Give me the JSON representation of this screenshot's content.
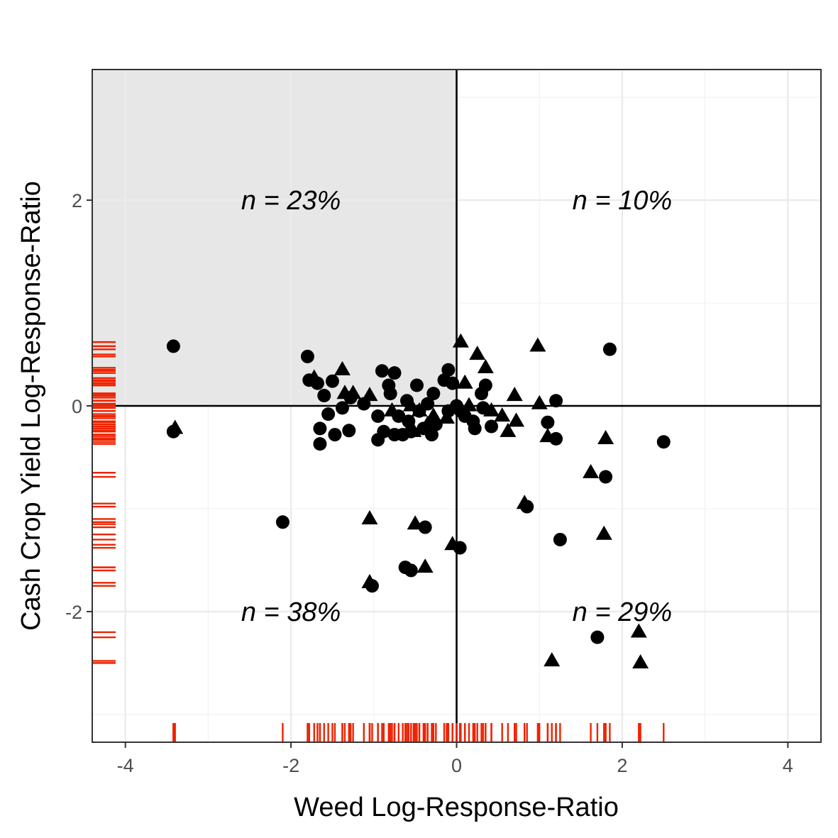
{
  "chart_data": {
    "type": "scatter",
    "title": "",
    "xlabel": "Weed Log-Response-Ratio",
    "ylabel": "Cash Crop Yield Log-Response-Ratio",
    "xlim": [
      -4.4,
      4.4
    ],
    "ylim": [
      -3.27,
      3.27
    ],
    "x_ticks": [
      -4,
      -2,
      0,
      2,
      4
    ],
    "y_ticks": [
      -2,
      0,
      2
    ],
    "grid": true,
    "shaded_quadrant": "top-left",
    "shade_color": "#e7e7e7",
    "rug_color": "#ee2200",
    "point_color": "#000000",
    "quadrant_annotations": [
      {
        "label": "n = 23%",
        "x": -2.0,
        "y": 2.0
      },
      {
        "label": "n = 10%",
        "x": 2.0,
        "y": 2.0
      },
      {
        "label": "n = 38%",
        "x": -2.0,
        "y": -2.0
      },
      {
        "label": "n = 29%",
        "x": 2.0,
        "y": -2.0
      }
    ],
    "series": [
      {
        "marker": "circle",
        "points": [
          [
            -3.42,
            0.58
          ],
          [
            -3.42,
            -0.25
          ],
          [
            -1.8,
            0.48
          ],
          [
            -1.78,
            0.25
          ],
          [
            -1.68,
            0.22
          ],
          [
            -1.6,
            0.1
          ],
          [
            -1.55,
            -0.08
          ],
          [
            -1.5,
            0.24
          ],
          [
            -1.65,
            -0.22
          ],
          [
            -1.65,
            -0.37
          ],
          [
            -1.47,
            -0.28
          ],
          [
            -1.38,
            -0.02
          ],
          [
            -1.3,
            -0.24
          ],
          [
            -1.28,
            0.08
          ],
          [
            -1.12,
            0.02
          ],
          [
            -0.95,
            -0.1
          ],
          [
            -0.95,
            -0.33
          ],
          [
            -0.9,
            0.34
          ],
          [
            -0.88,
            -0.25
          ],
          [
            -0.82,
            0.2
          ],
          [
            -0.8,
            0.12
          ],
          [
            -0.75,
            0.32
          ],
          [
            -0.75,
            -0.28
          ],
          [
            -0.7,
            -0.1
          ],
          [
            -0.65,
            -0.28
          ],
          [
            -0.6,
            0.05
          ],
          [
            -0.58,
            -0.15
          ],
          [
            -0.55,
            -0.25
          ],
          [
            -0.48,
            0.2
          ],
          [
            -0.45,
            -0.05
          ],
          [
            -0.4,
            -0.22
          ],
          [
            -0.35,
            0.02
          ],
          [
            -0.3,
            -0.28
          ],
          [
            -0.28,
            0.12
          ],
          [
            -0.25,
            -0.18
          ],
          [
            -0.15,
            0.25
          ],
          [
            -0.1,
            0.35
          ],
          [
            -0.1,
            -0.05
          ],
          [
            -0.05,
            0.22
          ],
          [
            0.0,
            0.0
          ],
          [
            0.05,
            -0.05
          ],
          [
            0.1,
            -0.1
          ],
          [
            0.2,
            -0.15
          ],
          [
            0.22,
            -0.22
          ],
          [
            0.3,
            0.12
          ],
          [
            0.32,
            -0.02
          ],
          [
            0.35,
            0.2
          ],
          [
            0.42,
            -0.2
          ],
          [
            0.85,
            -0.98
          ],
          [
            1.1,
            -0.16
          ],
          [
            1.2,
            0.05
          ],
          [
            1.2,
            -0.32
          ],
          [
            1.25,
            -1.3
          ],
          [
            1.7,
            -2.25
          ],
          [
            1.8,
            -0.69
          ],
          [
            1.85,
            0.55
          ],
          [
            2.5,
            -0.35
          ],
          [
            -2.1,
            -1.13
          ],
          [
            -1.02,
            -1.75
          ],
          [
            -0.62,
            -1.57
          ],
          [
            -0.55,
            -1.6
          ],
          [
            -0.38,
            -1.18
          ],
          [
            0.04,
            -1.38
          ]
        ]
      },
      {
        "marker": "triangle",
        "points": [
          [
            -3.4,
            -0.22
          ],
          [
            -1.72,
            0.27
          ],
          [
            -1.38,
            0.35
          ],
          [
            -1.35,
            0.12
          ],
          [
            -1.25,
            0.12
          ],
          [
            -1.05,
            0.1
          ],
          [
            -0.78,
            -0.05
          ],
          [
            -0.55,
            0.0
          ],
          [
            -0.52,
            -0.25
          ],
          [
            -0.45,
            -0.05
          ],
          [
            -0.35,
            -0.18
          ],
          [
            -0.28,
            -0.1
          ],
          [
            -0.12,
            -0.12
          ],
          [
            0.05,
            0.62
          ],
          [
            0.1,
            0.22
          ],
          [
            0.15,
            0.0
          ],
          [
            0.25,
            0.5
          ],
          [
            0.35,
            0.37
          ],
          [
            0.42,
            -0.05
          ],
          [
            0.55,
            -0.1
          ],
          [
            0.62,
            -0.25
          ],
          [
            0.7,
            0.1
          ],
          [
            0.72,
            -0.15
          ],
          [
            0.98,
            0.58
          ],
          [
            1.0,
            0.02
          ],
          [
            1.1,
            -0.3
          ],
          [
            1.62,
            -0.65
          ],
          [
            1.8,
            -0.32
          ],
          [
            1.78,
            -1.25
          ],
          [
            2.2,
            -2.2
          ],
          [
            2.22,
            -2.5
          ],
          [
            1.15,
            -2.48
          ],
          [
            0.82,
            -0.95
          ],
          [
            -1.05,
            -1.1
          ],
          [
            -1.05,
            -1.72
          ],
          [
            -0.5,
            -1.15
          ],
          [
            -0.38,
            -1.57
          ],
          [
            -0.05,
            -1.35
          ]
        ]
      }
    ]
  }
}
